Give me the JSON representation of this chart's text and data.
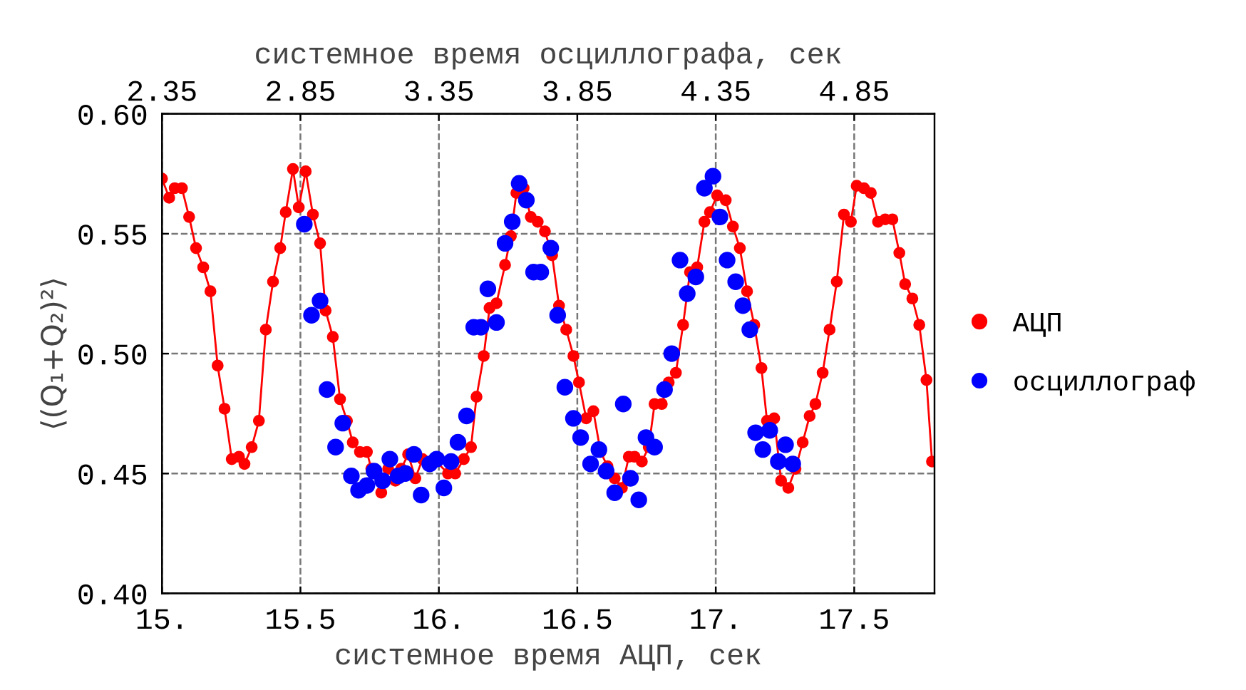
{
  "chart_data": {
    "type": "line",
    "xlabel": "системное время АЦП, сек",
    "ylabel": "⟨(Q₁+Q₂)²⟩",
    "x2label": "системное время осциллографа, сек",
    "xlim": [
      15.0,
      17.79
    ],
    "ylim": [
      0.4,
      0.6
    ],
    "xticks": [
      {
        "value": 15,
        "label": "15."
      },
      15.5,
      {
        "value": 16,
        "label": "16."
      },
      16.5,
      {
        "value": 17,
        "label": "17."
      },
      17.5
    ],
    "yticks": [
      {
        "value": 0.4,
        "label": "0.40"
      },
      0.45,
      {
        "value": 0.5,
        "label": "0.50"
      },
      0.55,
      {
        "value": 0.6,
        "label": "0.60"
      }
    ],
    "x2lim": [
      2.35,
      5.14
    ],
    "x2ticks": [
      2.35,
      2.85,
      3.35,
      3.85,
      4.35,
      4.85
    ],
    "grid": true,
    "legend": "right",
    "marker": "circle",
    "series": [
      {
        "name": "АЦП",
        "color": "#ff0000",
        "x": [
          15.0,
          15.026,
          15.046,
          15.072,
          15.098,
          15.123,
          15.149,
          15.175,
          15.201,
          15.226,
          15.252,
          15.278,
          15.298,
          15.324,
          15.35,
          15.375,
          15.401,
          15.427,
          15.447,
          15.473,
          15.494,
          15.519,
          15.545,
          15.571,
          15.591,
          15.617,
          15.643,
          15.668,
          15.689,
          15.715,
          15.74,
          15.756,
          15.792,
          15.817,
          15.843,
          15.864,
          15.889,
          15.915,
          15.941,
          15.982,
          16.033,
          16.059,
          16.09,
          16.116,
          16.136,
          16.162,
          16.183,
          16.208,
          16.239,
          16.26,
          16.28,
          16.306,
          16.332,
          16.357,
          16.383,
          16.409,
          16.434,
          16.46,
          16.486,
          16.506,
          16.532,
          16.558,
          16.584,
          16.609,
          16.635,
          16.661,
          16.686,
          16.707,
          16.733,
          16.758,
          16.779,
          16.805,
          16.83,
          16.856,
          16.882,
          16.907,
          16.933,
          16.959,
          16.979,
          17.005,
          17.036,
          17.062,
          17.087,
          17.113,
          17.139,
          17.165,
          17.185,
          17.211,
          17.236,
          17.262,
          17.288,
          17.314,
          17.339,
          17.36,
          17.386,
          17.411,
          17.437,
          17.463,
          17.488,
          17.509,
          17.535,
          17.56,
          17.586,
          17.612,
          17.638,
          17.663,
          17.684,
          17.71,
          17.735,
          17.761,
          17.781
        ],
        "values": [
          0.573,
          0.565,
          0.569,
          0.569,
          0.557,
          0.544,
          0.536,
          0.526,
          0.495,
          0.477,
          0.456,
          0.457,
          0.454,
          0.461,
          0.472,
          0.51,
          0.53,
          0.544,
          0.559,
          0.577,
          0.561,
          0.576,
          0.558,
          0.546,
          0.518,
          0.507,
          0.481,
          0.472,
          0.463,
          0.459,
          0.459,
          0.452,
          0.442,
          0.452,
          0.447,
          0.452,
          0.458,
          0.448,
          0.456,
          0.456,
          0.45,
          0.45,
          0.456,
          0.461,
          0.482,
          0.499,
          0.519,
          0.521,
          0.537,
          0.549,
          0.567,
          0.569,
          0.557,
          0.555,
          0.551,
          0.541,
          0.52,
          0.51,
          0.499,
          0.488,
          0.473,
          0.476,
          0.459,
          0.453,
          0.448,
          0.444,
          0.457,
          0.457,
          0.455,
          0.461,
          0.479,
          0.479,
          0.488,
          0.492,
          0.512,
          0.534,
          0.536,
          0.555,
          0.559,
          0.566,
          0.564,
          0.553,
          0.544,
          0.526,
          0.512,
          0.494,
          0.472,
          0.473,
          0.447,
          0.444,
          0.452,
          0.463,
          0.474,
          0.479,
          0.492,
          0.51,
          0.53,
          0.558,
          0.555,
          0.57,
          0.569,
          0.567,
          0.555,
          0.556,
          0.556,
          0.542,
          0.529,
          0.523,
          0.512,
          0.489,
          0.455
        ]
      },
      {
        "name": "осциллограф",
        "type": "scatter",
        "color": "#0000ff",
        "x": [
          15.514,
          15.54,
          15.571,
          15.596,
          15.627,
          15.653,
          15.684,
          15.71,
          15.74,
          15.766,
          15.797,
          15.823,
          15.853,
          15.879,
          15.91,
          15.936,
          15.967,
          15.992,
          16.018,
          16.044,
          16.069,
          16.1,
          16.126,
          16.152,
          16.177,
          16.208,
          16.239,
          16.265,
          16.29,
          16.316,
          16.342,
          16.368,
          16.404,
          16.429,
          16.455,
          16.486,
          16.512,
          16.548,
          16.578,
          16.604,
          16.635,
          16.666,
          16.692,
          16.722,
          16.748,
          16.779,
          16.815,
          16.841,
          16.871,
          16.897,
          16.928,
          16.959,
          16.99,
          17.015,
          17.041,
          17.072,
          17.098,
          17.123,
          17.144,
          17.17,
          17.195,
          17.226,
          17.252,
          17.278
        ],
        "values": [
          0.554,
          0.516,
          0.522,
          0.485,
          0.461,
          0.471,
          0.449,
          0.443,
          0.445,
          0.451,
          0.447,
          0.456,
          0.449,
          0.45,
          0.458,
          0.441,
          0.454,
          0.456,
          0.444,
          0.455,
          0.463,
          0.474,
          0.511,
          0.511,
          0.527,
          0.513,
          0.546,
          0.555,
          0.571,
          0.564,
          0.534,
          0.534,
          0.544,
          0.516,
          0.486,
          0.473,
          0.465,
          0.454,
          0.46,
          0.451,
          0.442,
          0.479,
          0.448,
          0.439,
          0.465,
          0.461,
          0.485,
          0.5,
          0.539,
          0.525,
          0.532,
          0.569,
          0.574,
          0.557,
          0.539,
          0.53,
          0.52,
          0.51,
          0.467,
          0.46,
          0.468,
          0.455,
          0.462,
          0.454
        ]
      }
    ]
  }
}
